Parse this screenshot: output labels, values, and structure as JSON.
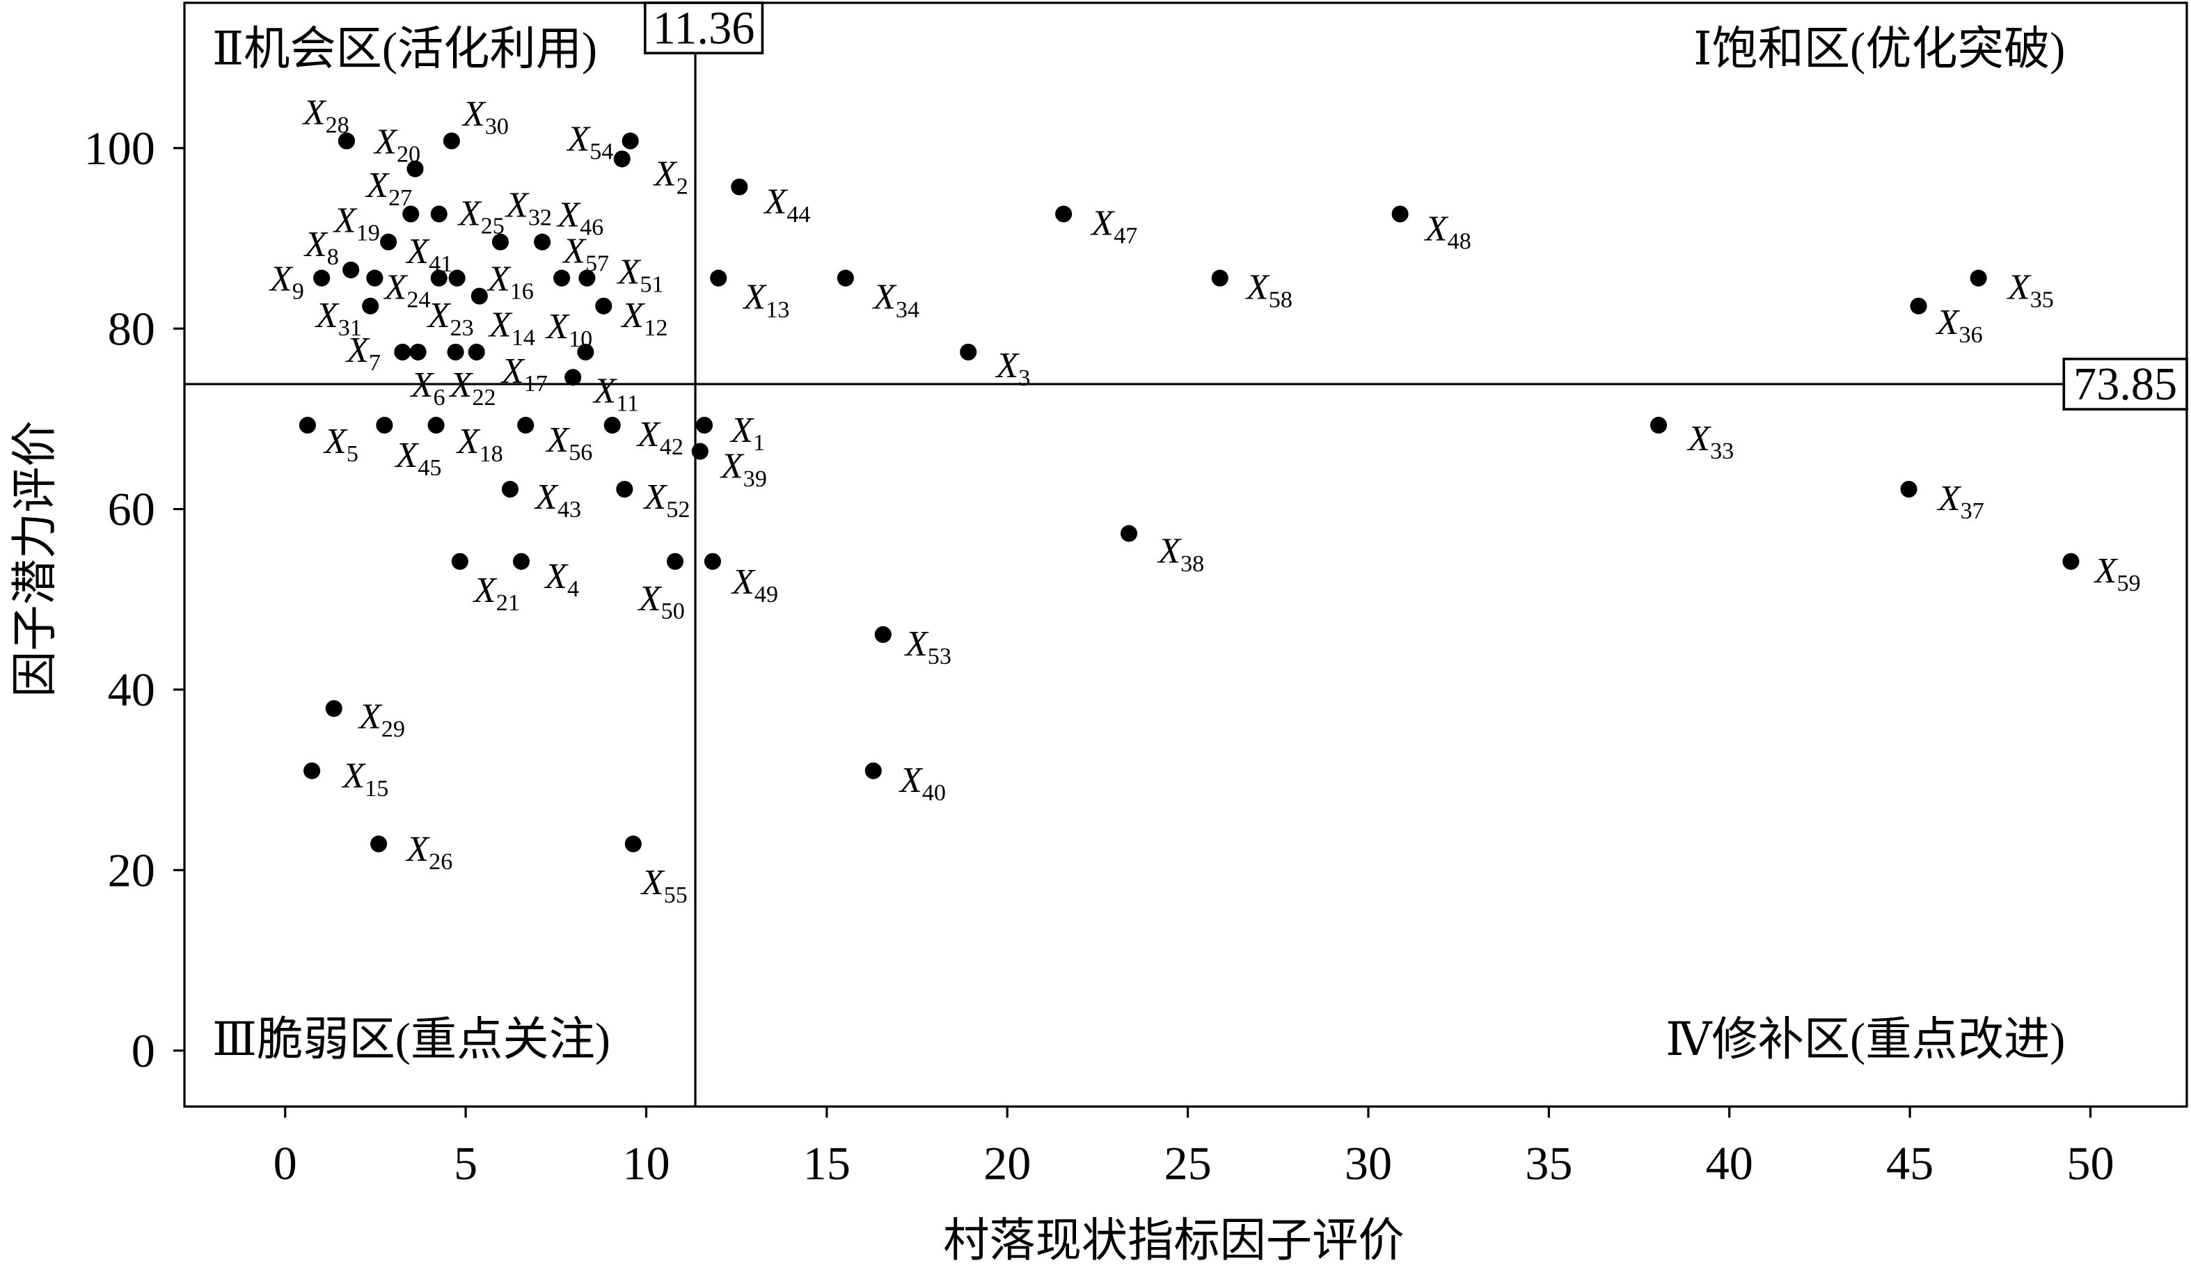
{
  "chart_data": {
    "type": "scatter",
    "xlabel": "村落现状指标因子评价",
    "ylabel": "因子潜力评价",
    "xlim": [
      -2.79,
      52.67
    ],
    "ylim": [
      -6.2,
      116.1
    ],
    "x_ticks": [
      0,
      5,
      10,
      15,
      20,
      25,
      30,
      35,
      40,
      45,
      50
    ],
    "y_ticks": [
      0,
      20,
      40,
      60,
      80,
      100
    ],
    "grid": false,
    "thresholds": {
      "x": 11.36,
      "y": 73.85
    },
    "quadrant_labels": {
      "top_left": "Ⅱ机会区(活化利用)",
      "top_right": "Ⅰ饱和区(优化突破)",
      "bottom_left": "Ⅲ脆弱区(重点关注)",
      "bottom_right": "Ⅳ修补区(重点改进)"
    },
    "point_label_prefix": "X",
    "colors": {
      "points": "#000000",
      "lines": "#000000"
    },
    "points": [
      {
        "sub": "1",
        "x": 11.61,
        "y": 69.3
      },
      {
        "sub": "2",
        "x": 9.33,
        "y": 98.8
      },
      {
        "sub": "3",
        "x": 18.92,
        "y": 77.4
      },
      {
        "sub": "4",
        "x": 6.54,
        "y": 54.2
      },
      {
        "sub": "5",
        "x": 0.62,
        "y": 69.3
      },
      {
        "sub": "6",
        "x": 3.68,
        "y": 77.4
      },
      {
        "sub": "7",
        "x": 3.25,
        "y": 77.4
      },
      {
        "sub": "8",
        "x": 1.82,
        "y": 86.5
      },
      {
        "sub": "9",
        "x": 1.01,
        "y": 85.6
      },
      {
        "sub": "10",
        "x": 8.32,
        "y": 77.4
      },
      {
        "sub": "11",
        "x": 7.97,
        "y": 74.6
      },
      {
        "sub": "12",
        "x": 8.82,
        "y": 82.5
      },
      {
        "sub": "13",
        "x": 12.0,
        "y": 85.6
      },
      {
        "sub": "14",
        "x": 5.38,
        "y": 83.6
      },
      {
        "sub": "15",
        "x": 0.74,
        "y": 31.0
      },
      {
        "sub": "16",
        "x": 4.76,
        "y": 85.6
      },
      {
        "sub": "17",
        "x": 5.3,
        "y": 77.4
      },
      {
        "sub": "18",
        "x": 4.18,
        "y": 69.3
      },
      {
        "sub": "19",
        "x": 3.48,
        "y": 92.7
      },
      {
        "sub": "20",
        "x": 1.7,
        "y": 100.8
      },
      {
        "sub": "21",
        "x": 4.84,
        "y": 54.2
      },
      {
        "sub": "22",
        "x": 4.72,
        "y": 77.4
      },
      {
        "sub": "23",
        "x": 4.26,
        "y": 85.6
      },
      {
        "sub": "24",
        "x": 2.48,
        "y": 85.6
      },
      {
        "sub": "25",
        "x": 4.26,
        "y": 92.7
      },
      {
        "sub": "26",
        "x": 2.59,
        "y": 22.9
      },
      {
        "sub": "27",
        "x": 3.6,
        "y": 97.7
      },
      {
        "sub": "28",
        "x": 1.7,
        "y": 100.8
      },
      {
        "sub": "29",
        "x": 1.35,
        "y": 37.9
      },
      {
        "sub": "30",
        "x": 4.61,
        "y": 100.8
      },
      {
        "sub": "31",
        "x": 2.36,
        "y": 82.5
      },
      {
        "sub": "32",
        "x": 5.96,
        "y": 89.6
      },
      {
        "sub": "33",
        "x": 38.04,
        "y": 69.3
      },
      {
        "sub": "34",
        "x": 15.52,
        "y": 85.6
      },
      {
        "sub": "35",
        "x": 46.9,
        "y": 85.6
      },
      {
        "sub": "36",
        "x": 45.24,
        "y": 82.5
      },
      {
        "sub": "37",
        "x": 44.97,
        "y": 62.2
      },
      {
        "sub": "38",
        "x": 23.37,
        "y": 57.3
      },
      {
        "sub": "39",
        "x": 11.49,
        "y": 66.4
      },
      {
        "sub": "40",
        "x": 16.29,
        "y": 31.0
      },
      {
        "sub": "41",
        "x": 2.86,
        "y": 89.6
      },
      {
        "sub": "42",
        "x": 9.06,
        "y": 69.3
      },
      {
        "sub": "43",
        "x": 6.23,
        "y": 62.2
      },
      {
        "sub": "44",
        "x": 12.58,
        "y": 95.7
      },
      {
        "sub": "45",
        "x": 2.75,
        "y": 69.3
      },
      {
        "sub": "46",
        "x": 7.12,
        "y": 89.6
      },
      {
        "sub": "47",
        "x": 21.56,
        "y": 92.7
      },
      {
        "sub": "48",
        "x": 30.88,
        "y": 92.7
      },
      {
        "sub": "49",
        "x": 11.84,
        "y": 54.2
      },
      {
        "sub": "50",
        "x": 10.8,
        "y": 54.2
      },
      {
        "sub": "51",
        "x": 8.36,
        "y": 85.6
      },
      {
        "sub": "52",
        "x": 9.4,
        "y": 62.2
      },
      {
        "sub": "53",
        "x": 16.56,
        "y": 46.1
      },
      {
        "sub": "54",
        "x": 9.56,
        "y": 100.8
      },
      {
        "sub": "55",
        "x": 9.64,
        "y": 22.9
      },
      {
        "sub": "56",
        "x": 6.66,
        "y": 69.3
      },
      {
        "sub": "57",
        "x": 7.66,
        "y": 85.6
      },
      {
        "sub": "58",
        "x": 25.89,
        "y": 85.6
      },
      {
        "sub": "59",
        "x": 49.46,
        "y": 54.2
      }
    ]
  }
}
